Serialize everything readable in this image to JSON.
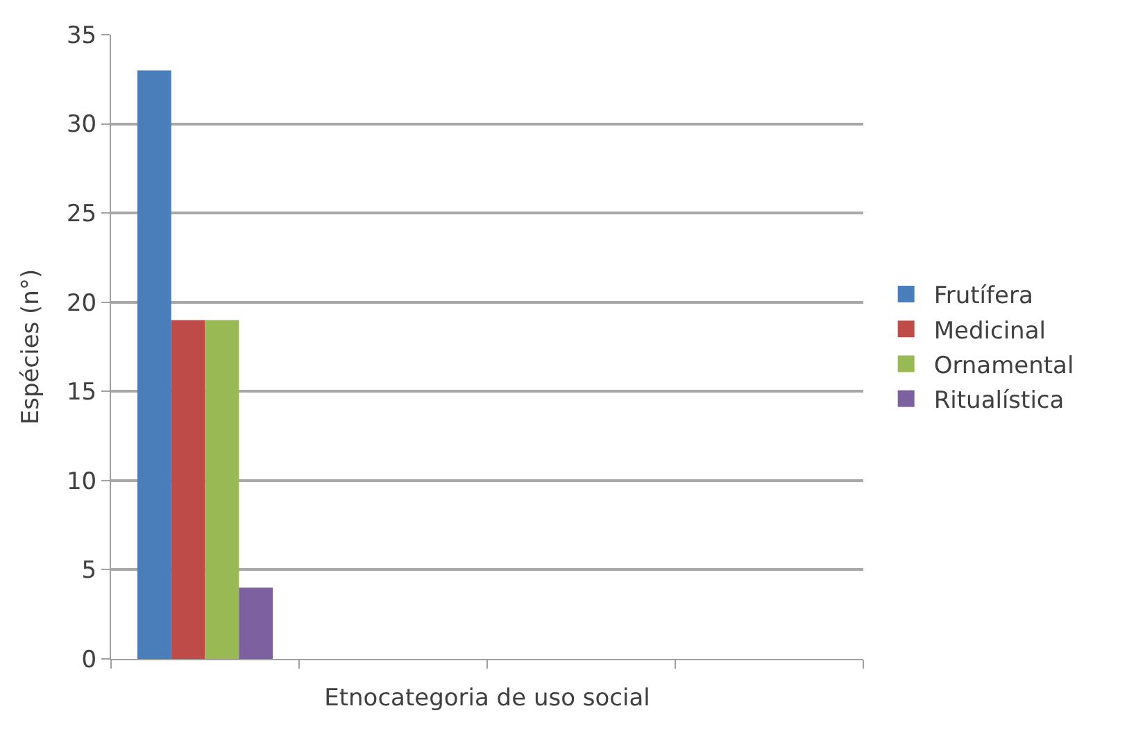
{
  "chart_data": {
    "type": "bar",
    "xlabel": "Etnocategoria de uso social",
    "ylabel": "Espécies (n°)",
    "categories": [
      null,
      null,
      null,
      null
    ],
    "series": [
      {
        "name": "Frutífera",
        "color": "#4a7ebb",
        "values": [
          33,
          null,
          null,
          null
        ]
      },
      {
        "name": "Medicinal",
        "color": "#be4b48",
        "values": [
          19,
          null,
          null,
          null
        ]
      },
      {
        "name": "Ornamental",
        "color": "#98b954",
        "values": [
          19,
          null,
          null,
          null
        ]
      },
      {
        "name": "Ritualística",
        "color": "#7d60a0",
        "values": [
          4,
          null,
          null,
          null
        ]
      }
    ],
    "ylim": [
      0,
      35
    ],
    "yticks": [
      0,
      5,
      10,
      15,
      20,
      25,
      30,
      35
    ],
    "grid": "y",
    "legend": "right",
    "tick_labels": "y"
  }
}
